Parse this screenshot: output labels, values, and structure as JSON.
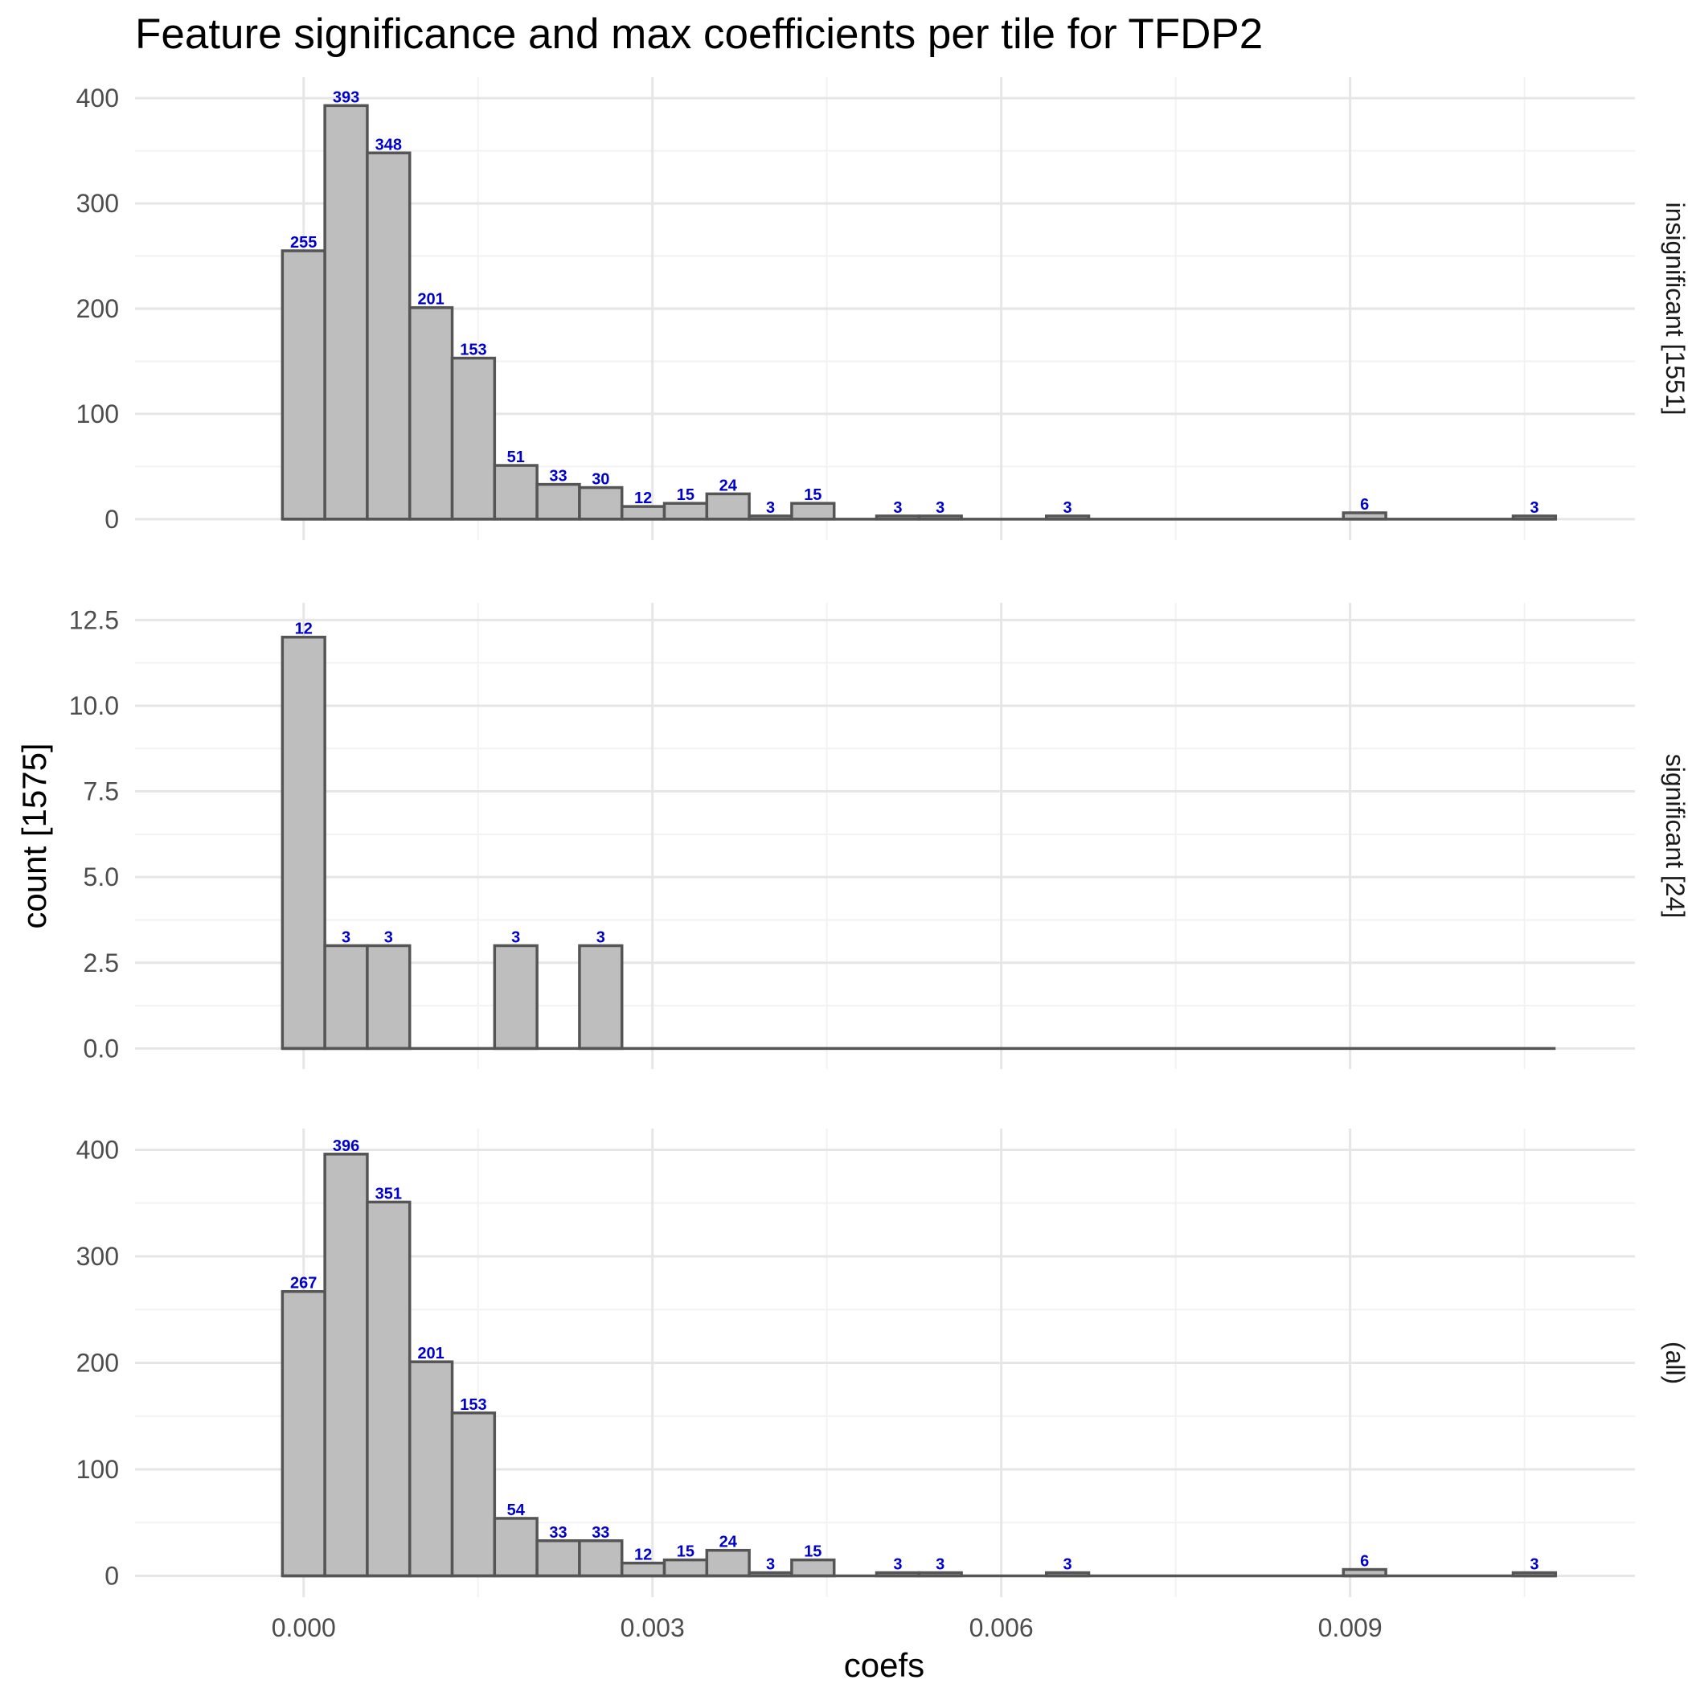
{
  "chart_data": {
    "type": "bar",
    "title": "Feature significance and max coefficients per tile for TFDP2",
    "xlabel": "coefs",
    "ylabel": "count [1575]",
    "x_ticks": [
      "0.000",
      "0.003",
      "0.006",
      "0.009"
    ],
    "x_tick_values": [
      0.0,
      0.003,
      0.006,
      0.009
    ],
    "xlim": [
      -0.00145,
      0.01145
    ],
    "bin_width": 0.000365,
    "bin_centers": [
      0.0,
      0.000365,
      0.00073,
      0.001095,
      0.00146,
      0.001825,
      0.00219,
      0.002555,
      0.00292,
      0.003285,
      0.00365,
      0.004015,
      0.00438,
      0.004745,
      0.00511,
      0.005475,
      0.00584,
      0.006205,
      0.00657,
      0.006935,
      0.0073,
      0.007665,
      0.00803,
      0.008395,
      0.00876,
      0.009125,
      0.00949,
      0.009855,
      0.01022,
      0.010585
    ],
    "grid": true,
    "facets": [
      {
        "strip_label": "insignificant [1551]",
        "ylim": [
          -20,
          420
        ],
        "y_ticks": [
          "0",
          "100",
          "200",
          "300",
          "400"
        ],
        "y_tick_values": [
          0,
          100,
          200,
          300,
          400
        ],
        "values": [
          255,
          393,
          348,
          201,
          153,
          51,
          33,
          30,
          12,
          15,
          24,
          3,
          15,
          0,
          3,
          3,
          0,
          0,
          3,
          0,
          0,
          0,
          0,
          0,
          0,
          6,
          0,
          0,
          0,
          3
        ]
      },
      {
        "strip_label": "significant [24]",
        "ylim": [
          -0.6,
          13.0
        ],
        "y_ticks": [
          "0.0",
          "2.5",
          "5.0",
          "7.5",
          "10.0",
          "12.5"
        ],
        "y_tick_values": [
          0,
          2.5,
          5.0,
          7.5,
          10.0,
          12.5
        ],
        "values": [
          12,
          3,
          3,
          0,
          0,
          3,
          0,
          3,
          0,
          0,
          0,
          0,
          0,
          0,
          0,
          0,
          0,
          0,
          0,
          0,
          0,
          0,
          0,
          0,
          0,
          0,
          0,
          0,
          0,
          0
        ]
      },
      {
        "strip_label": "(all)",
        "ylim": [
          -20,
          420
        ],
        "y_ticks": [
          "0",
          "100",
          "200",
          "300",
          "400"
        ],
        "y_tick_values": [
          0,
          100,
          200,
          300,
          400
        ],
        "values": [
          267,
          396,
          351,
          201,
          153,
          54,
          33,
          33,
          12,
          15,
          24,
          3,
          15,
          0,
          3,
          3,
          0,
          0,
          3,
          0,
          0,
          0,
          0,
          0,
          0,
          6,
          0,
          0,
          0,
          3
        ]
      }
    ],
    "colors": {
      "bar_fill": "#bebebe",
      "bar_stroke": "#555555",
      "label": "#0000cc",
      "grid_major": "#e6e6e6",
      "grid_minor": "#f2f2f2"
    }
  }
}
